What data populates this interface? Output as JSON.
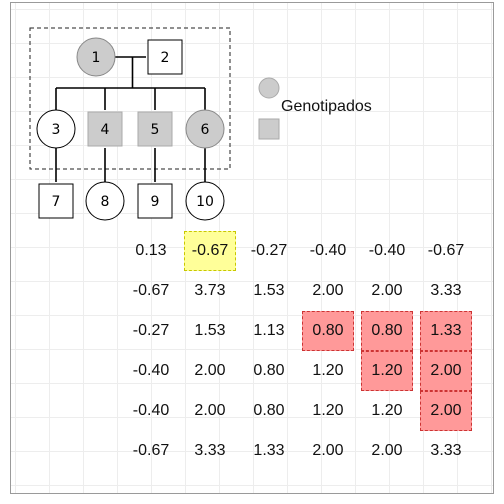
{
  "pedigree": {
    "nodes": [
      {
        "id": "1",
        "label": "1",
        "shape": "circle",
        "genotyped": true
      },
      {
        "id": "2",
        "label": "2",
        "shape": "square",
        "genotyped": false
      },
      {
        "id": "3",
        "label": "3",
        "shape": "circle",
        "genotyped": false
      },
      {
        "id": "4",
        "label": "4",
        "shape": "square",
        "genotyped": true
      },
      {
        "id": "5",
        "label": "5",
        "shape": "square",
        "genotyped": true
      },
      {
        "id": "6",
        "label": "6",
        "shape": "circle",
        "genotyped": true
      },
      {
        "id": "7",
        "label": "7",
        "shape": "square",
        "genotyped": false
      },
      {
        "id": "8",
        "label": "8",
        "shape": "circle",
        "genotyped": false
      },
      {
        "id": "9",
        "label": "9",
        "shape": "square",
        "genotyped": false
      },
      {
        "id": "10",
        "label": "10",
        "shape": "circle",
        "genotyped": false
      }
    ],
    "couples": [
      {
        "partners": [
          "1",
          "2"
        ],
        "children": [
          "3",
          "4",
          "5",
          "6"
        ]
      }
    ],
    "parent_child": [
      {
        "parent": "3",
        "child": "7"
      },
      {
        "parent": "4",
        "child": "8"
      },
      {
        "parent": "5",
        "child": "9"
      },
      {
        "parent": "6",
        "child": "10"
      }
    ]
  },
  "legend": {
    "label": "Genotipados",
    "fill_color": "#cccccc"
  },
  "matrix": {
    "rows": [
      [
        "0.13",
        "-0.67",
        "-0.27",
        "-0.40",
        "-0.40",
        "-0.67"
      ],
      [
        "-0.67",
        "3.73",
        "1.53",
        "2.00",
        "2.00",
        "3.33"
      ],
      [
        "-0.27",
        "1.53",
        "1.13",
        "0.80",
        "0.80",
        "1.33"
      ],
      [
        "-0.40",
        "2.00",
        "0.80",
        "1.20",
        "1.20",
        "2.00"
      ],
      [
        "-0.40",
        "2.00",
        "0.80",
        "1.20",
        "1.20",
        "2.00"
      ],
      [
        "-0.67",
        "3.33",
        "1.33",
        "2.00",
        "2.00",
        "3.33"
      ]
    ],
    "highlights": {
      "yellow": [
        [
          0,
          1
        ]
      ],
      "red": [
        [
          2,
          3
        ],
        [
          2,
          4
        ],
        [
          2,
          5
        ],
        [
          3,
          4
        ],
        [
          3,
          5
        ],
        [
          4,
          5
        ]
      ]
    },
    "colors": {
      "yellow": "#ffff99",
      "red": "#ff9999"
    }
  }
}
